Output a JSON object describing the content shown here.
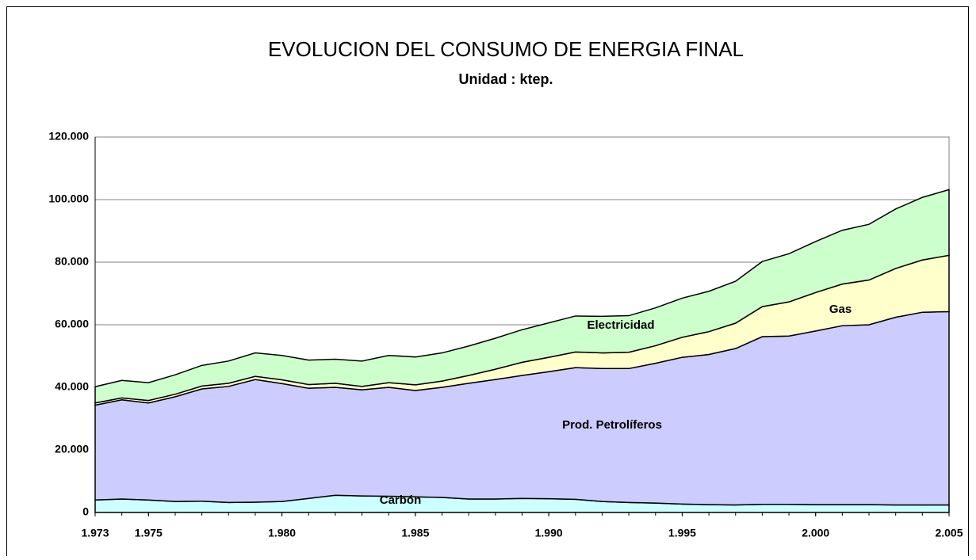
{
  "chart_data": {
    "type": "stacked-area",
    "title": "EVOLUCION DEL CONSUMO DE ENERGIA FINAL",
    "subtitle": "Unidad : ktep.",
    "x": [
      1973,
      1974,
      1975,
      1976,
      1977,
      1978,
      1979,
      1980,
      1981,
      1982,
      1983,
      1984,
      1985,
      1986,
      1987,
      1988,
      1989,
      1990,
      1991,
      1992,
      1993,
      1994,
      1995,
      1996,
      1997,
      1998,
      1999,
      2000,
      2001,
      2002,
      2003,
      2004,
      2005
    ],
    "series": [
      {
        "name": "Carbón",
        "color": "#ccffff",
        "values": [
          4000,
          4300,
          4000,
          3500,
          3600,
          3200,
          3300,
          3500,
          4500,
          5500,
          5300,
          5200,
          5000,
          4800,
          4300,
          4300,
          4500,
          4400,
          4200,
          3500,
          3200,
          3000,
          2700,
          2500,
          2400,
          2600,
          2600,
          2500,
          2500,
          2500,
          2400,
          2400,
          2400
        ]
      },
      {
        "name": "Prod. Petrolíferos",
        "color": "#ccccff",
        "values": [
          30300,
          31700,
          31000,
          33500,
          35900,
          37100,
          39200,
          37700,
          35200,
          34500,
          33900,
          34800,
          34000,
          35200,
          37000,
          38200,
          39300,
          40600,
          42100,
          42500,
          42800,
          44700,
          46900,
          48000,
          50000,
          53600,
          53800,
          55500,
          57200,
          57500,
          60000,
          61600,
          61800
        ]
      },
      {
        "name": "Gas",
        "color": "#ffffcc",
        "values": [
          700,
          600,
          800,
          800,
          900,
          1000,
          1000,
          1200,
          1200,
          1300,
          1100,
          1500,
          1800,
          2000,
          2500,
          3300,
          4200,
          4600,
          5000,
          5000,
          5200,
          5600,
          6400,
          7300,
          8100,
          9600,
          10900,
          12300,
          13300,
          14300,
          15600,
          16700,
          18000
        ]
      },
      {
        "name": "Electricidad",
        "color": "#ccffcc",
        "values": [
          5200,
          5600,
          5700,
          6200,
          6600,
          7100,
          7500,
          7800,
          7800,
          7700,
          8100,
          8700,
          8900,
          9000,
          9400,
          9900,
          10400,
          11000,
          11500,
          11700,
          11700,
          12100,
          12500,
          12900,
          13400,
          14400,
          15400,
          16300,
          17200,
          17800,
          19000,
          20000,
          21000
        ]
      }
    ],
    "xlim": [
      1973,
      2005
    ],
    "xticks": [
      {
        "value": 1973,
        "label": "1.973"
      },
      {
        "value": 1975,
        "label": "1.975"
      },
      {
        "value": 1980,
        "label": "1.980"
      },
      {
        "value": 1985,
        "label": "1.985"
      },
      {
        "value": 1990,
        "label": "1.990"
      },
      {
        "value": 1995,
        "label": "1.995"
      },
      {
        "value": 2000,
        "label": "2.000"
      },
      {
        "value": 2005,
        "label": "2.005"
      }
    ],
    "ylim": [
      0,
      120000
    ],
    "yticks": [
      0,
      {
        "value": 20000,
        "label": "20.000"
      },
      {
        "value": 40000,
        "label": "40.000"
      },
      {
        "value": 60000,
        "label": "60.000"
      },
      {
        "value": 80000,
        "label": "80.000"
      },
      {
        "value": 100000,
        "label": "100.000"
      },
      {
        "value": 120000,
        "label": "120.000"
      }
    ],
    "grid": true
  }
}
